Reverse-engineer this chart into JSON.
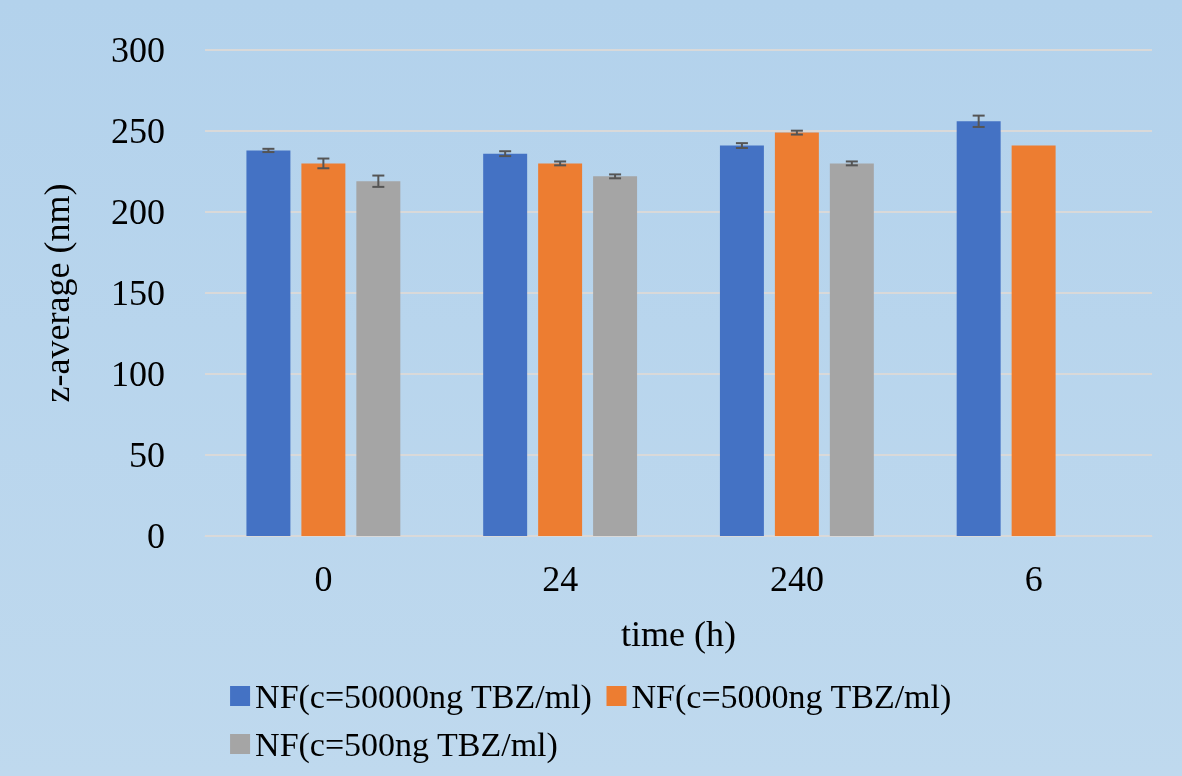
{
  "chart_data": {
    "type": "bar",
    "xlabel": "time (h)",
    "ylabel": "z-average (nm)",
    "categories": [
      "0",
      "24",
      "240",
      "6"
    ],
    "series": [
      {
        "name": "NF(c=50000ng TBZ/ml)",
        "color": "#4472c4",
        "values": [
          238,
          236,
          241,
          256
        ],
        "errors": [
          1,
          1.5,
          1.5,
          3.5
        ]
      },
      {
        "name": "NF(c=5000ng TBZ/ml)",
        "color": "#ed7d31",
        "values": [
          230,
          230,
          249,
          241
        ],
        "errors": [
          3,
          1.2,
          1.2,
          null
        ]
      },
      {
        "name": "NF(c=500ng TBZ/ml)",
        "color": "#a5a5a5",
        "values": [
          219,
          222,
          230,
          null
        ],
        "errors": [
          3.5,
          1.2,
          1.2,
          null
        ]
      }
    ],
    "ylim": [
      0,
      300
    ],
    "yticks": [
      0,
      50,
      100,
      150,
      200,
      250,
      300
    ],
    "grid": "y",
    "legend": "bottom"
  }
}
